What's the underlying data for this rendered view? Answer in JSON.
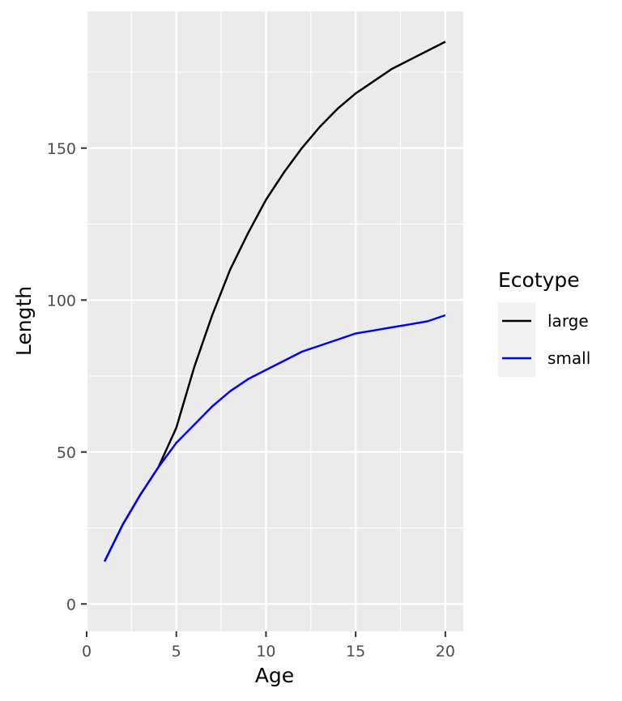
{
  "chart_data": {
    "type": "line",
    "xlabel": "Age",
    "ylabel": "Length",
    "xlim": [
      0,
      21
    ],
    "ylim": [
      -9,
      195
    ],
    "x_ticks": [
      0,
      5,
      10,
      15,
      20
    ],
    "y_ticks": [
      0,
      50,
      100,
      150
    ],
    "grid": true,
    "legend": {
      "title": "Ecotype",
      "position": "right"
    },
    "series": [
      {
        "name": "large",
        "color": "#000000",
        "x": [
          1,
          2,
          3,
          4,
          5,
          6,
          7,
          8,
          9,
          10,
          11,
          12,
          13,
          14,
          15,
          16,
          17,
          18,
          19,
          20
        ],
        "values": [
          14,
          26,
          36,
          45,
          58,
          78,
          95,
          110,
          122,
          133,
          142,
          150,
          157,
          163,
          168,
          172,
          176,
          179,
          182,
          185
        ]
      },
      {
        "name": "small",
        "color": "#0000ff",
        "x": [
          1,
          2,
          3,
          4,
          5,
          6,
          7,
          8,
          9,
          10,
          11,
          12,
          13,
          14,
          15,
          16,
          17,
          18,
          19,
          20
        ],
        "values": [
          14,
          26,
          36,
          45,
          53,
          59,
          65,
          70,
          74,
          77,
          80,
          83,
          85,
          87,
          89,
          90,
          91,
          92,
          93,
          95
        ]
      }
    ]
  }
}
